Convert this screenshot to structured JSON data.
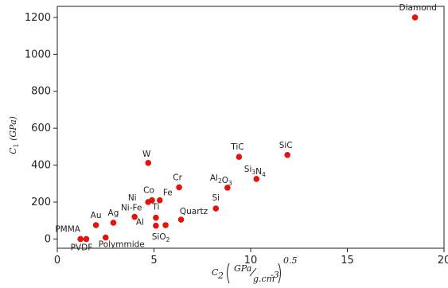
{
  "chart_data": {
    "type": "scatter",
    "ylabel_html": [
      "C",
      "1",
      " (GPa)"
    ],
    "xlabel_parts": {
      "base": "C",
      "sub": "2",
      "numerator": "GPa",
      "denominator": "g.cm",
      "den_exp": "-3",
      "exponent": "0.5"
    },
    "xlim": [
      0,
      20
    ],
    "ylim": [
      -50,
      1260
    ],
    "xticks": [
      0,
      5,
      10,
      15,
      20
    ],
    "yticks": [
      0,
      200,
      400,
      600,
      800,
      1000,
      1200
    ],
    "marker_color": "#e8120c",
    "points": [
      {
        "label": "Diamond",
        "x": 18.5,
        "y": 1200
      },
      {
        "label": "TiC",
        "x": 9.4,
        "y": 445
      },
      {
        "label": "SiC",
        "x": 11.9,
        "y": 455
      },
      {
        "label": "W",
        "x": 4.7,
        "y": 412
      },
      {
        "label": "Si3N4",
        "sub": "3",
        "sub2": "4",
        "x": 10.3,
        "y": 325
      },
      {
        "label": "Al2O3",
        "x": 8.8,
        "y": 278
      },
      {
        "label": "Cr",
        "x": 6.3,
        "y": 280
      },
      {
        "label": "Si",
        "x": 8.2,
        "y": 165
      },
      {
        "label": "Co",
        "x": 4.9,
        "y": 210
      },
      {
        "label": "Ni",
        "x": 4.7,
        "y": 200
      },
      {
        "label": "Fe",
        "x": 5.3,
        "y": 210
      },
      {
        "label": "Ni-Fe",
        "x": 4.0,
        "y": 120
      },
      {
        "label": "Ti",
        "x": 5.1,
        "y": 115
      },
      {
        "label": "Quartz",
        "x": 6.4,
        "y": 105
      },
      {
        "label": "Al",
        "x": 5.1,
        "y": 72
      },
      {
        "label": "SiO2",
        "x": 5.6,
        "y": 75
      },
      {
        "label": "Au",
        "x": 2.0,
        "y": 75
      },
      {
        "label": "Ag",
        "x": 2.9,
        "y": 88
      },
      {
        "label": "Polymmide",
        "x": 2.5,
        "y": 8
      },
      {
        "label": "PMMA",
        "x": 1.2,
        "y": 0
      },
      {
        "label": "PVDF",
        "x": 1.5,
        "y": 0
      }
    ]
  }
}
